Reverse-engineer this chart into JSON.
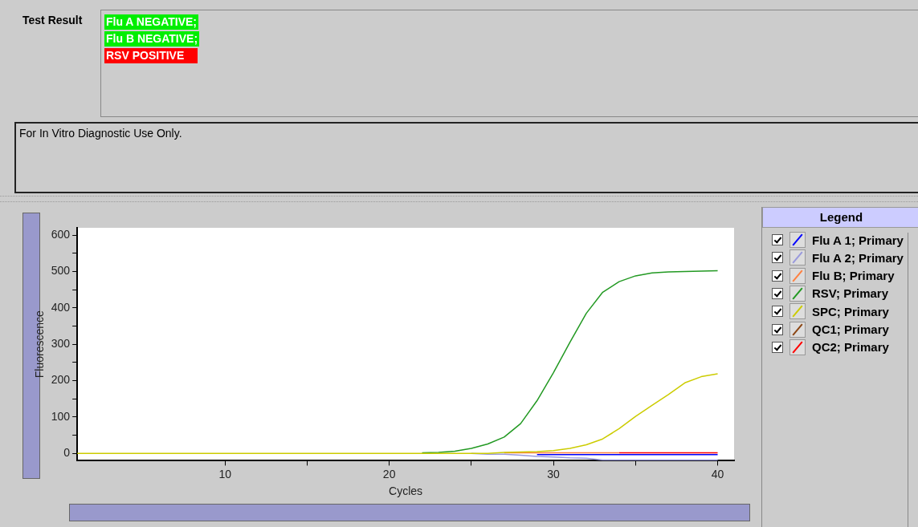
{
  "chart_data": {
    "type": "line",
    "xlabel": "Cycles",
    "ylabel": "Fluorescence",
    "legend_title": "Legend",
    "legend": "right",
    "marker": "none",
    "line_style": "solid",
    "grid": false,
    "annotations": [
      "Test Result",
      "Flu A NEGATIVE;",
      "Flu B NEGATIVE;",
      "RSV POSITIVE",
      "For In Vitro Diagnostic Use Only."
    ],
    "xlim": [
      1,
      41
    ],
    "xticks": [
      10,
      {
        "value": 15,
        "label": null
      },
      20,
      {
        "value": 25,
        "label": null
      },
      30,
      {
        "value": 35,
        "label": null
      },
      40
    ],
    "ylim": [
      -20,
      620
    ],
    "yticks": [
      0,
      {
        "value": 50,
        "label": null
      },
      100,
      {
        "value": 150,
        "label": null
      },
      200,
      {
        "value": 250,
        "label": null
      },
      300,
      {
        "value": 350,
        "label": null
      },
      400,
      {
        "value": 450,
        "label": null
      },
      500,
      {
        "value": 550,
        "label": null
      },
      600
    ],
    "x": [
      1,
      2,
      3,
      4,
      5,
      6,
      7,
      8,
      9,
      10,
      11,
      12,
      13,
      14,
      15,
      16,
      17,
      18,
      19,
      20,
      21,
      22,
      23,
      24,
      25,
      26,
      27,
      28,
      29,
      30,
      31,
      32,
      33,
      34,
      35,
      36,
      37,
      38,
      39,
      40
    ],
    "series": [
      {
        "name": "Flu A 1; Primary",
        "color": "#0000ff",
        "values": [
          null,
          null,
          null,
          null,
          null,
          null,
          null,
          null,
          null,
          null,
          null,
          null,
          null,
          null,
          null,
          null,
          null,
          null,
          null,
          null,
          null,
          null,
          null,
          null,
          null,
          null,
          null,
          null,
          -3,
          -3,
          -3,
          -3,
          -3,
          -3,
          -3,
          -3,
          -3,
          -3,
          -3,
          -3
        ]
      },
      {
        "name": "Flu A 2; Primary",
        "color": "#9999dd",
        "values": [
          null,
          null,
          null,
          null,
          null,
          null,
          null,
          null,
          null,
          null,
          null,
          null,
          null,
          null,
          null,
          null,
          null,
          null,
          null,
          null,
          null,
          null,
          null,
          null,
          0,
          -2,
          -2,
          -5,
          -8,
          -10,
          -12,
          -13,
          -18,
          -18,
          -18,
          -18,
          -18,
          -18,
          -18,
          -18
        ]
      },
      {
        "name": "Flu B; Primary",
        "color": "#ff8040",
        "values": [
          null,
          null,
          null,
          null,
          null,
          null,
          null,
          null,
          null,
          null,
          null,
          null,
          null,
          null,
          null,
          null,
          null,
          null,
          null,
          null,
          null,
          null,
          null,
          null,
          null,
          null,
          2,
          2,
          2,
          2,
          2,
          2,
          2,
          2,
          null,
          null,
          null,
          null,
          null,
          null
        ]
      },
      {
        "name": "RSV; Primary",
        "color": "#229922",
        "values": [
          null,
          null,
          null,
          null,
          null,
          null,
          null,
          null,
          null,
          null,
          null,
          null,
          null,
          null,
          null,
          null,
          null,
          null,
          null,
          null,
          null,
          2,
          3,
          6,
          14,
          26,
          45,
          82,
          145,
          222,
          305,
          385,
          443,
          472,
          488,
          496,
          499,
          500,
          501,
          502
        ]
      },
      {
        "name": "SPC; Primary",
        "color": "#cccc00",
        "values": [
          0,
          0,
          0,
          0,
          0,
          0,
          0,
          0,
          0,
          0,
          0,
          0,
          0,
          0,
          0,
          0,
          0,
          0,
          0,
          0,
          0,
          0,
          0,
          0,
          0,
          0,
          3,
          4,
          5,
          8,
          14,
          24,
          40,
          68,
          102,
          132,
          162,
          194,
          211,
          219
        ]
      },
      {
        "name": "QC1; Primary",
        "color": "#8b4513",
        "values": [
          null,
          null,
          null,
          null,
          null,
          null,
          null,
          null,
          null,
          null,
          null,
          null,
          null,
          null,
          null,
          null,
          null,
          null,
          null,
          null,
          null,
          null,
          null,
          null,
          null,
          null,
          null,
          null,
          null,
          null,
          null,
          null,
          null,
          null,
          null,
          null,
          null,
          null,
          null,
          null
        ]
      },
      {
        "name": "QC2; Primary",
        "color": "#ff0000",
        "values": [
          null,
          null,
          null,
          null,
          null,
          null,
          null,
          null,
          null,
          null,
          null,
          null,
          null,
          null,
          null,
          null,
          null,
          null,
          null,
          null,
          null,
          null,
          null,
          null,
          null,
          null,
          null,
          null,
          null,
          null,
          null,
          null,
          null,
          2,
          2,
          2,
          2,
          2,
          2,
          2
        ]
      }
    ]
  }
}
